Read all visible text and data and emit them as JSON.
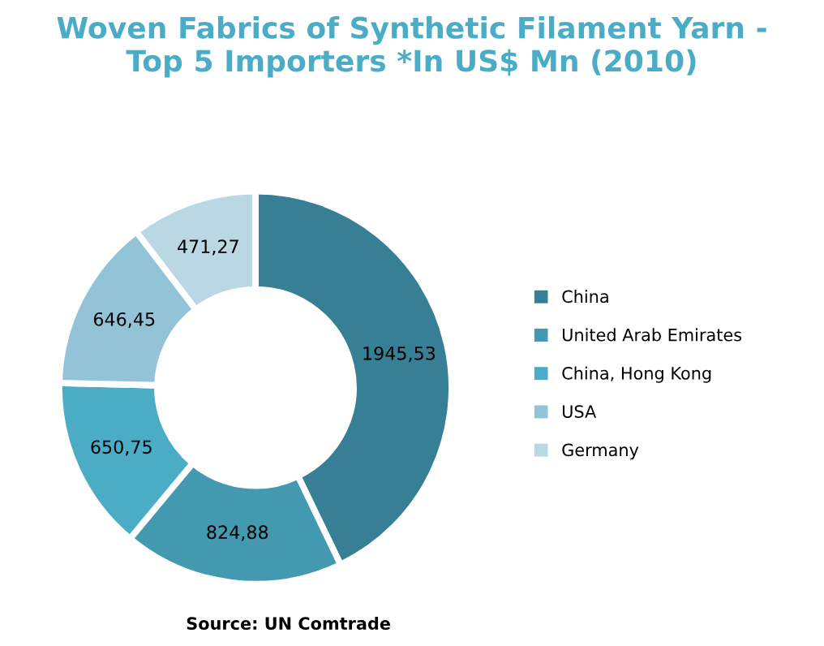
{
  "chart_data": {
    "type": "donut",
    "title": "Woven Fabrics of Synthetic Filament Yarn -\nTop 5 Importers *In US$ Mn (2010)",
    "categories": [
      "China",
      "United Arab Emirates",
      "China, Hong Kong",
      "USA",
      "Germany"
    ],
    "values": [
      1945.53,
      824.88,
      650.75,
      646.45,
      471.27
    ],
    "value_labels": [
      "1945,53",
      "824,88",
      "650,75",
      "646,45",
      "471,27"
    ],
    "colors": [
      "#377f94",
      "#4299b0",
      "#4badc5",
      "#93c3d6",
      "#b9d8e4"
    ],
    "legend": "right",
    "annotations": [
      "Source: UN Comtrade"
    ]
  }
}
